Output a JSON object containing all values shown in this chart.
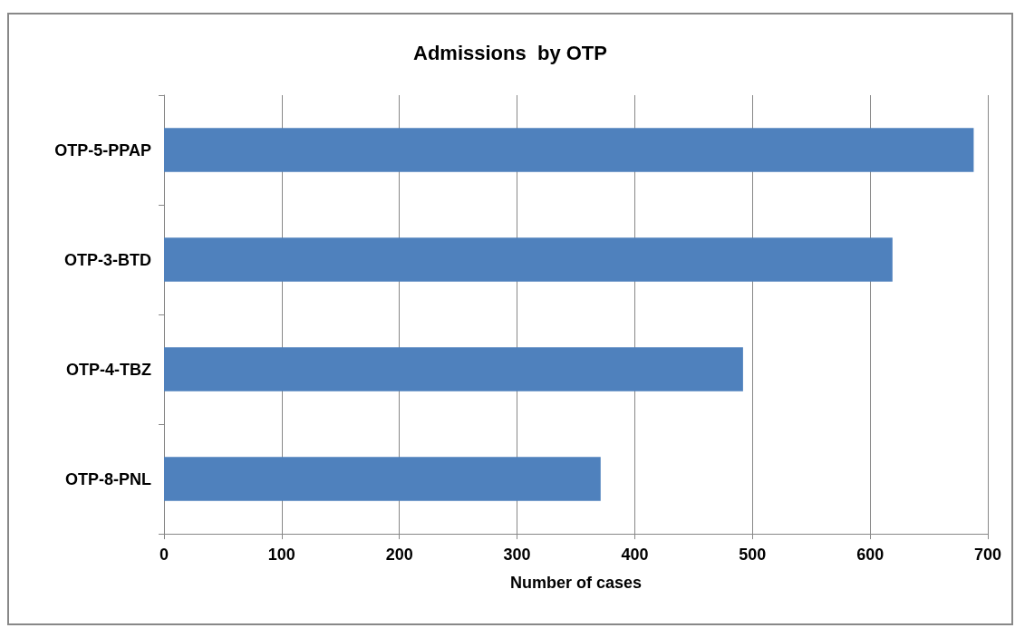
{
  "chart_data": {
    "type": "bar",
    "orientation": "horizontal",
    "title": "Admissions  by OTP",
    "xlabel": "Number of cases",
    "categories": [
      "OTP-5-PPAP",
      "OTP-3-BTD",
      "OTP-4-TBZ",
      "OTP-8-PNL"
    ],
    "values": [
      688,
      619,
      492,
      371
    ],
    "color": "#4f81bd",
    "xlim": [
      0,
      700
    ],
    "xticks": [
      0,
      100,
      200,
      300,
      400,
      500,
      600,
      700
    ],
    "grid": "x"
  }
}
